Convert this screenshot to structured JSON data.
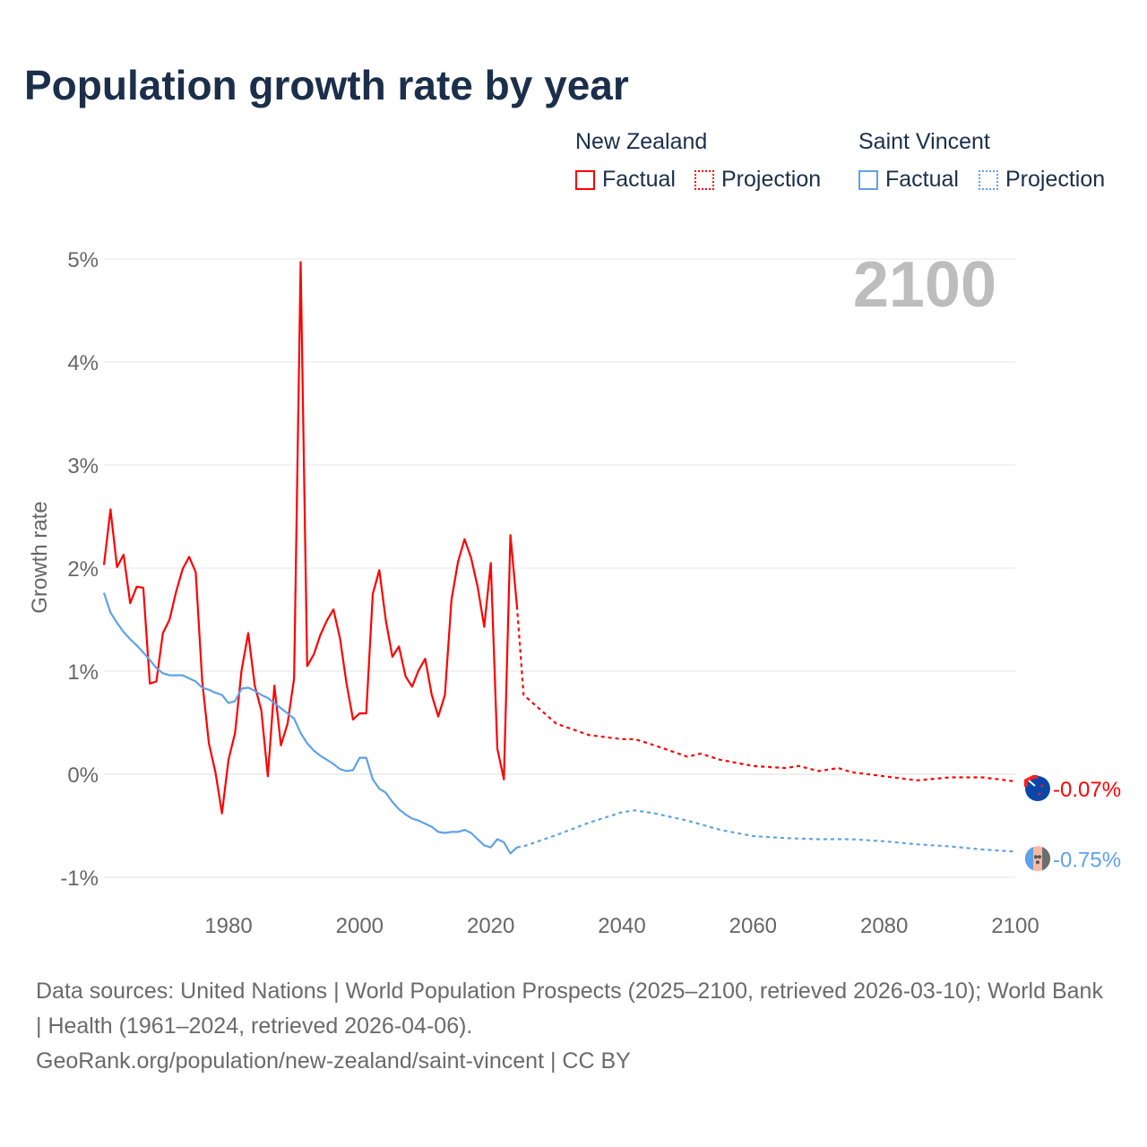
{
  "chart_data": {
    "type": "line",
    "title": "Population growth rate by year",
    "ylabel": "Growth rate",
    "xlabel": "",
    "xlim": [
      1961,
      2100
    ],
    "ylim": [
      -1.1,
      5.1
    ],
    "y_ticks": [
      5,
      4,
      3,
      2,
      1,
      0,
      -1
    ],
    "y_tick_labels": [
      "5%",
      "4%",
      "3%",
      "2%",
      "1%",
      "0%",
      "-1%"
    ],
    "x_ticks": [
      1980,
      2000,
      2020,
      2040,
      2060,
      2080,
      2100
    ],
    "x_tick_labels": [
      "1980",
      "2000",
      "2020",
      "2040",
      "2060",
      "2080",
      "2100"
    ],
    "grid": true,
    "year_display": "2100",
    "legend": {
      "placement": "top-right",
      "groups": [
        {
          "name": "New Zealand",
          "items": [
            "Factual",
            "Projection"
          ]
        },
        {
          "name": "Saint Vincent",
          "items": [
            "Factual",
            "Projection"
          ]
        }
      ]
    },
    "series": [
      {
        "name": "New Zealand",
        "color": "#ff0000",
        "end_label": "-0.07%",
        "factual": {
          "x": [
            1961,
            1962,
            1963,
            1964,
            1965,
            1966,
            1967,
            1968,
            1969,
            1970,
            1971,
            1972,
            1973,
            1974,
            1975,
            1976,
            1977,
            1978,
            1979,
            1980,
            1981,
            1982,
            1983,
            1984,
            1985,
            1986,
            1987,
            1988,
            1989,
            1990,
            1991,
            1992,
            1993,
            1994,
            1995,
            1996,
            1997,
            1998,
            1999,
            2000,
            2001,
            2002,
            2003,
            2004,
            2005,
            2006,
            2007,
            2008,
            2009,
            2010,
            2011,
            2012,
            2013,
            2014,
            2015,
            2016,
            2017,
            2018,
            2019,
            2020,
            2021,
            2022,
            2023,
            2024
          ],
          "y": [
            2.03,
            2.57,
            2.01,
            2.13,
            1.66,
            1.82,
            1.81,
            0.88,
            0.9,
            1.37,
            1.5,
            1.77,
            1.99,
            2.11,
            1.96,
            0.9,
            0.3,
            0.02,
            -0.38,
            0.14,
            0.4,
            1.01,
            1.37,
            0.86,
            0.62,
            -0.02,
            0.86,
            0.28,
            0.49,
            0.93,
            4.97,
            1.05,
            1.16,
            1.35,
            1.49,
            1.6,
            1.32,
            0.88,
            0.53,
            0.59,
            0.59,
            1.75,
            1.98,
            1.49,
            1.14,
            1.24,
            0.95,
            0.85,
            1.01,
            1.12,
            0.77,
            0.56,
            0.77,
            1.69,
            2.06,
            2.28,
            2.1,
            1.82,
            1.43,
            2.05,
            0.25,
            -0.05,
            2.32,
            1.63
          ]
        },
        "projection": {
          "x": [
            2024,
            2025,
            2030,
            2035,
            2040,
            2042,
            2045,
            2050,
            2052,
            2055,
            2060,
            2065,
            2067,
            2070,
            2073,
            2075,
            2080,
            2085,
            2090,
            2095,
            2100
          ],
          "y": [
            1.63,
            0.77,
            0.49,
            0.38,
            0.34,
            0.34,
            0.28,
            0.17,
            0.2,
            0.14,
            0.08,
            0.06,
            0.08,
            0.03,
            0.06,
            0.02,
            -0.02,
            -0.06,
            -0.03,
            -0.03,
            -0.07
          ]
        }
      },
      {
        "name": "Saint Vincent",
        "color": "#5fa2e8",
        "end_label": "-0.75%",
        "factual": {
          "x": [
            1961,
            1962,
            1963,
            1964,
            1965,
            1966,
            1967,
            1968,
            1969,
            1970,
            1971,
            1972,
            1973,
            1974,
            1975,
            1976,
            1977,
            1978,
            1979,
            1980,
            1981,
            1982,
            1983,
            1984,
            1985,
            1986,
            1987,
            1988,
            1989,
            1990,
            1991,
            1992,
            1993,
            1994,
            1995,
            1996,
            1997,
            1998,
            1999,
            2000,
            2001,
            2002,
            2003,
            2004,
            2005,
            2006,
            2007,
            2008,
            2009,
            2010,
            2011,
            2012,
            2013,
            2014,
            2015,
            2016,
            2017,
            2018,
            2019,
            2020,
            2021,
            2022,
            2023,
            2024
          ],
          "y": [
            1.76,
            1.57,
            1.47,
            1.38,
            1.31,
            1.25,
            1.18,
            1.11,
            1.03,
            0.98,
            0.96,
            0.96,
            0.96,
            0.93,
            0.9,
            0.84,
            0.82,
            0.79,
            0.77,
            0.69,
            0.71,
            0.83,
            0.84,
            0.81,
            0.77,
            0.74,
            0.69,
            0.64,
            0.59,
            0.54,
            0.4,
            0.3,
            0.23,
            0.18,
            0.14,
            0.1,
            0.05,
            0.03,
            0.04,
            0.16,
            0.16,
            -0.05,
            -0.14,
            -0.18,
            -0.27,
            -0.34,
            -0.39,
            -0.43,
            -0.45,
            -0.48,
            -0.51,
            -0.56,
            -0.57,
            -0.56,
            -0.56,
            -0.54,
            -0.57,
            -0.63,
            -0.69,
            -0.71,
            -0.63,
            -0.66,
            -0.77,
            -0.71
          ]
        },
        "projection": {
          "x": [
            2024,
            2025,
            2030,
            2035,
            2040,
            2042,
            2045,
            2050,
            2055,
            2060,
            2065,
            2070,
            2075,
            2080,
            2085,
            2090,
            2095,
            2100
          ],
          "y": [
            -0.71,
            -0.7,
            -0.59,
            -0.47,
            -0.37,
            -0.35,
            -0.38,
            -0.45,
            -0.54,
            -0.6,
            -0.62,
            -0.63,
            -0.63,
            -0.65,
            -0.68,
            -0.7,
            -0.73,
            -0.75
          ]
        }
      }
    ]
  },
  "footer": {
    "sources": "Data sources: United Nations | World Population Prospects (2025–2100, retrieved 2026-03-10); World Bank | Health (1961–2024, retrieved 2026-04-06).",
    "credit": "GeoRank.org/population/new-zealand/saint-vincent | CC BY"
  }
}
